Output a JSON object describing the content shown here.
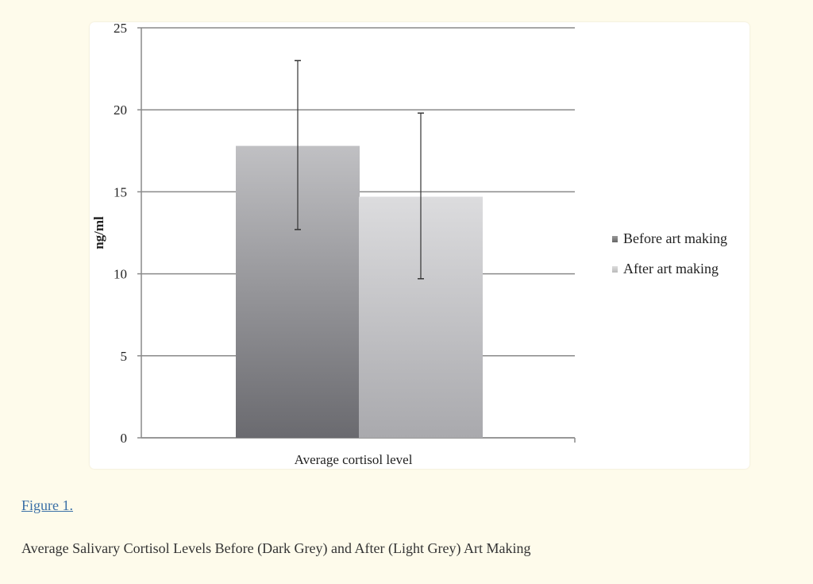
{
  "chart_data": {
    "type": "bar",
    "categories": [
      "Average cortisol level"
    ],
    "series": [
      {
        "name": "Before art making",
        "values": [
          17.8
        ],
        "error_low": [
          12.7
        ],
        "error_high": [
          23.0
        ],
        "color": "#6b6b70"
      },
      {
        "name": "After art making",
        "values": [
          14.7
        ],
        "error_low": [
          9.7
        ],
        "error_high": [
          19.8
        ],
        "color": "#b8b8bc"
      }
    ],
    "title": "",
    "xlabel": "Average cortisol level",
    "ylabel": "ng/ml",
    "ylim": [
      0,
      25
    ],
    "yticks": [
      "0",
      "5",
      "10",
      "15",
      "20",
      "25"
    ],
    "grid": true,
    "legend_position": "right"
  },
  "figure": {
    "link_label": "Figure 1.",
    "caption": "Average Salivary Cortisol Levels Before (Dark Grey) and After (Light Grey) Art Making"
  }
}
